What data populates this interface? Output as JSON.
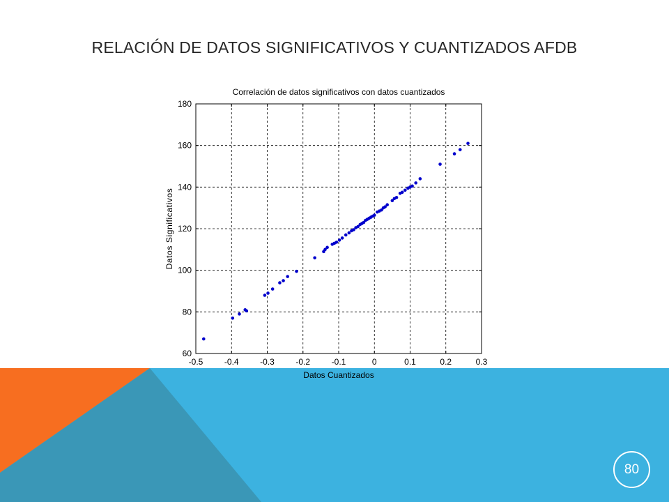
{
  "slide": {
    "title": "RELACIÓN DE DATOS SIGNIFICATIVOS Y CUANTIZADOS AFDB",
    "page_number": "80",
    "colors": {
      "blue_band": "#3CB2E0",
      "orange_triangle": "#F76E20",
      "dark_overlay": "#3A97B7"
    }
  },
  "chart_data": {
    "type": "scatter",
    "title": "Correlación de datos significativos con datos cuantizados",
    "xlabel": "Datos Cuantizados",
    "ylabel": "Datos Significativos",
    "xlim": [
      -0.5,
      0.3
    ],
    "ylim": [
      60,
      180
    ],
    "xticks": [
      "-0.5",
      "-0.4",
      "-0.3",
      "-0.2",
      "-0.1",
      "0",
      "0.1",
      "0.2",
      "0.3"
    ],
    "yticks": [
      "60",
      "80",
      "100",
      "120",
      "140",
      "160",
      "180"
    ],
    "grid": true,
    "marker_color": "#0000CC",
    "points": [
      [
        -0.478,
        67
      ],
      [
        -0.397,
        77
      ],
      [
        -0.378,
        79
      ],
      [
        -0.362,
        81
      ],
      [
        -0.358,
        80.5
      ],
      [
        -0.307,
        88
      ],
      [
        -0.298,
        89
      ],
      [
        -0.285,
        91
      ],
      [
        -0.265,
        94
      ],
      [
        -0.255,
        95
      ],
      [
        -0.243,
        97
      ],
      [
        -0.218,
        99.5
      ],
      [
        -0.167,
        106
      ],
      [
        -0.142,
        109
      ],
      [
        -0.138,
        110
      ],
      [
        -0.132,
        111
      ],
      [
        -0.118,
        112.5
      ],
      [
        -0.112,
        113
      ],
      [
        -0.106,
        113.5
      ],
      [
        -0.098,
        114.5
      ],
      [
        -0.09,
        115.5
      ],
      [
        -0.08,
        117
      ],
      [
        -0.071,
        118
      ],
      [
        -0.064,
        119
      ],
      [
        -0.058,
        119.5
      ],
      [
        -0.052,
        120.5
      ],
      [
        -0.046,
        121
      ],
      [
        -0.04,
        122
      ],
      [
        -0.035,
        122.5
      ],
      [
        -0.03,
        123
      ],
      [
        -0.025,
        124
      ],
      [
        -0.02,
        124.5
      ],
      [
        -0.015,
        125
      ],
      [
        -0.01,
        125.5
      ],
      [
        -0.005,
        126
      ],
      [
        0.0,
        126.5
      ],
      [
        0.008,
        128
      ],
      [
        0.014,
        128.5
      ],
      [
        0.02,
        129
      ],
      [
        0.025,
        130
      ],
      [
        0.03,
        130.5
      ],
      [
        0.036,
        131.5
      ],
      [
        0.05,
        133.5
      ],
      [
        0.056,
        134.5
      ],
      [
        0.062,
        135
      ],
      [
        0.072,
        137
      ],
      [
        0.078,
        137.5
      ],
      [
        0.086,
        138.5
      ],
      [
        0.094,
        139.5
      ],
      [
        0.1,
        140
      ],
      [
        0.106,
        140.5
      ],
      [
        0.116,
        142
      ],
      [
        0.128,
        144
      ],
      [
        0.184,
        151
      ],
      [
        0.224,
        156
      ],
      [
        0.24,
        158
      ],
      [
        0.262,
        161
      ]
    ]
  }
}
